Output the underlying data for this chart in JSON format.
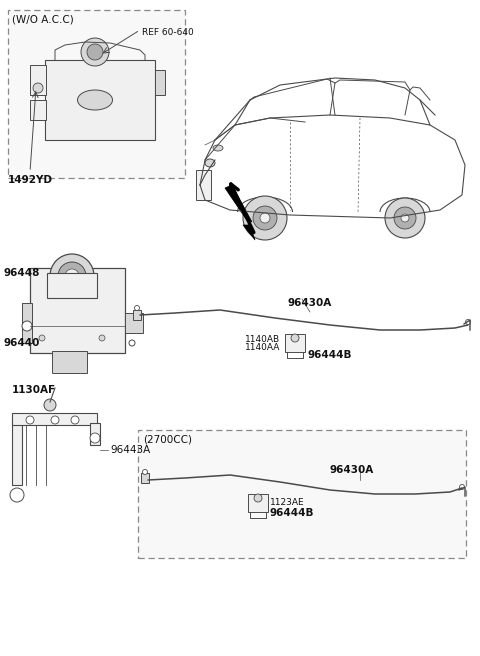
{
  "bg_color": "#ffffff",
  "line_color": "#4a4a4a",
  "dash_color": "#888888",
  "text_color": "#111111",
  "fill_light": "#f0f0f0",
  "fill_mid": "#d8d8d8",
  "fill_dark": "#b0b0b0",
  "labels": {
    "wo_acc": "(W/O A.C.C)",
    "ref_60_640": "REF 60-640",
    "part_1492yd": "1492YD",
    "part_96448": "96448",
    "part_96440": "96440",
    "part_96443a": "96443A",
    "part_1130af": "1130AF",
    "part_96430a_main": "96430A",
    "part_1140ab": "1140AB",
    "part_1140aa": "1140AA",
    "part_96444b_main": "96444B",
    "box_2700cc": "(2700CC)",
    "part_96430a_sub": "96430A",
    "part_1123ae": "1123AE",
    "part_96444b_sub": "96444B"
  },
  "fs": 7.0,
  "fs_bold": 7.5
}
